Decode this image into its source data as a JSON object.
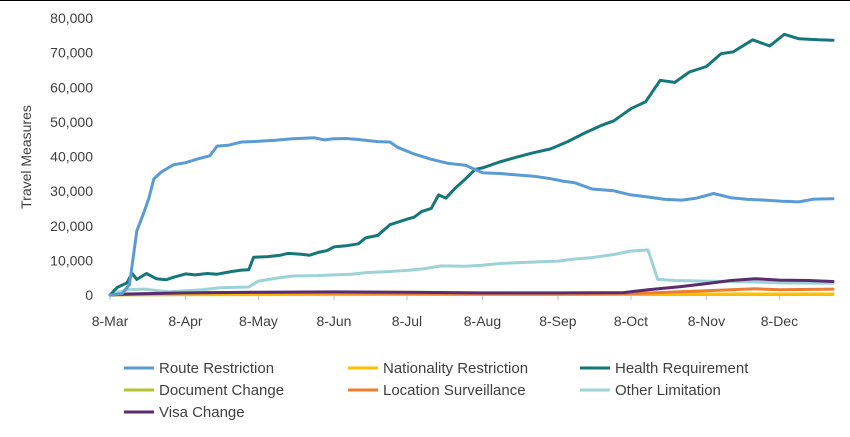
{
  "chart_data": {
    "type": "line",
    "title": "",
    "xlabel": "",
    "ylabel": "Travel Measures",
    "ylim": [
      0,
      80000
    ],
    "yticks": [
      0,
      10000,
      20000,
      30000,
      40000,
      50000,
      60000,
      70000,
      80000
    ],
    "ytick_labels": [
      "0",
      "10,000",
      "20,000",
      "30,000",
      "40,000",
      "50,000",
      "60,000",
      "70,000",
      "80,000"
    ],
    "xlim": [
      "2020-03-08",
      "2020-12-30"
    ],
    "xticks": [
      "2020-03-08",
      "2020-04-08",
      "2020-05-08",
      "2020-06-08",
      "2020-07-08",
      "2020-08-08",
      "2020-09-08",
      "2020-10-08",
      "2020-11-08",
      "2020-12-08"
    ],
    "xtick_labels": [
      "8-Mar",
      "8-Apr",
      "8-May",
      "8-Jun",
      "8-Jul",
      "8-Aug",
      "8-Sep",
      "8-Oct",
      "8-Nov",
      "8-Dec"
    ],
    "grid": false,
    "legend_position": "bottom",
    "series": [
      {
        "name": "Route Restriction",
        "color": "#5B9BD5",
        "points": [
          [
            "2020-03-08",
            0
          ],
          [
            "2020-03-13",
            400
          ],
          [
            "2020-03-16",
            3000
          ],
          [
            "2020-03-19",
            18500
          ],
          [
            "2020-03-22",
            24000
          ],
          [
            "2020-03-24",
            28000
          ],
          [
            "2020-03-26",
            33500
          ],
          [
            "2020-03-29",
            35500
          ],
          [
            "2020-04-03",
            37600
          ],
          [
            "2020-04-08",
            38200
          ],
          [
            "2020-04-13",
            39300
          ],
          [
            "2020-04-18",
            40200
          ],
          [
            "2020-04-21",
            43000
          ],
          [
            "2020-04-26",
            43300
          ],
          [
            "2020-05-01",
            44200
          ],
          [
            "2020-05-08",
            44400
          ],
          [
            "2020-05-15",
            44700
          ],
          [
            "2020-05-22",
            45100
          ],
          [
            "2020-05-31",
            45400
          ],
          [
            "2020-06-04",
            44800
          ],
          [
            "2020-06-08",
            45100
          ],
          [
            "2020-06-13",
            45200
          ],
          [
            "2020-06-18",
            44900
          ],
          [
            "2020-06-26",
            44300
          ],
          [
            "2020-07-01",
            44200
          ],
          [
            "2020-07-04",
            42700
          ],
          [
            "2020-07-11",
            40700
          ],
          [
            "2020-07-18",
            39200
          ],
          [
            "2020-07-25",
            38000
          ],
          [
            "2020-08-01",
            37500
          ],
          [
            "2020-08-08",
            35300
          ],
          [
            "2020-08-15",
            35100
          ],
          [
            "2020-08-22",
            34700
          ],
          [
            "2020-08-29",
            34300
          ],
          [
            "2020-09-05",
            33600
          ],
          [
            "2020-09-10",
            32900
          ],
          [
            "2020-09-15",
            32400
          ],
          [
            "2020-09-22",
            30600
          ],
          [
            "2020-10-01",
            30100
          ],
          [
            "2020-10-08",
            28900
          ],
          [
            "2020-10-15",
            28300
          ],
          [
            "2020-10-22",
            27600
          ],
          [
            "2020-10-29",
            27400
          ],
          [
            "2020-11-04",
            28000
          ],
          [
            "2020-11-11",
            29300
          ],
          [
            "2020-11-18",
            28100
          ],
          [
            "2020-11-25",
            27600
          ],
          [
            "2020-12-02",
            27400
          ],
          [
            "2020-12-09",
            27100
          ],
          [
            "2020-12-16",
            26900
          ],
          [
            "2020-12-22",
            27700
          ],
          [
            "2020-12-30",
            27800
          ]
        ]
      },
      {
        "name": "Nationality Restriction",
        "color": "#FFC000",
        "points": [
          [
            "2020-03-08",
            0
          ],
          [
            "2020-03-20",
            150
          ],
          [
            "2020-04-08",
            250
          ],
          [
            "2020-05-08",
            300
          ],
          [
            "2020-07-08",
            300
          ],
          [
            "2020-09-08",
            300
          ],
          [
            "2020-10-08",
            300
          ],
          [
            "2020-11-08",
            300
          ],
          [
            "2020-12-08",
            300
          ],
          [
            "2020-12-30",
            300
          ]
        ]
      },
      {
        "name": "Health Requirement",
        "color": "#16777A",
        "points": [
          [
            "2020-03-08",
            0
          ],
          [
            "2020-03-11",
            2200
          ],
          [
            "2020-03-15",
            3500
          ],
          [
            "2020-03-17",
            6300
          ],
          [
            "2020-03-19",
            4500
          ],
          [
            "2020-03-23",
            6200
          ],
          [
            "2020-03-27",
            4700
          ],
          [
            "2020-03-31",
            4400
          ],
          [
            "2020-04-03",
            5100
          ],
          [
            "2020-04-06",
            5700
          ],
          [
            "2020-04-08",
            6100
          ],
          [
            "2020-04-12",
            5800
          ],
          [
            "2020-04-17",
            6200
          ],
          [
            "2020-04-21",
            6000
          ],
          [
            "2020-04-27",
            6800
          ],
          [
            "2020-05-01",
            7200
          ],
          [
            "2020-05-04",
            7300
          ],
          [
            "2020-05-06",
            10900
          ],
          [
            "2020-05-12",
            11100
          ],
          [
            "2020-05-17",
            11500
          ],
          [
            "2020-05-20",
            12000
          ],
          [
            "2020-05-25",
            11800
          ],
          [
            "2020-05-29",
            11500
          ],
          [
            "2020-06-02",
            12400
          ],
          [
            "2020-06-05",
            12800
          ],
          [
            "2020-06-08",
            13900
          ],
          [
            "2020-06-13",
            14200
          ],
          [
            "2020-06-18",
            14800
          ],
          [
            "2020-06-21",
            16500
          ],
          [
            "2020-06-26",
            17200
          ],
          [
            "2020-07-01",
            20300
          ],
          [
            "2020-07-08",
            21900
          ],
          [
            "2020-07-11",
            22500
          ],
          [
            "2020-07-14",
            24100
          ],
          [
            "2020-07-18",
            25000
          ],
          [
            "2020-07-21",
            28900
          ],
          [
            "2020-07-24",
            28000
          ],
          [
            "2020-07-28",
            31000
          ],
          [
            "2020-08-01",
            33500
          ],
          [
            "2020-08-05",
            36300
          ],
          [
            "2020-08-08",
            36700
          ],
          [
            "2020-08-15",
            38400
          ],
          [
            "2020-08-22",
            39800
          ],
          [
            "2020-08-29",
            41100
          ],
          [
            "2020-09-05",
            42200
          ],
          [
            "2020-09-12",
            44300
          ],
          [
            "2020-09-19",
            46800
          ],
          [
            "2020-09-26",
            49000
          ],
          [
            "2020-10-01",
            50300
          ],
          [
            "2020-10-08",
            53800
          ],
          [
            "2020-10-14",
            55800
          ],
          [
            "2020-10-20",
            62000
          ],
          [
            "2020-10-26",
            61400
          ],
          [
            "2020-11-01",
            64400
          ],
          [
            "2020-11-08",
            66000
          ],
          [
            "2020-11-14",
            69700
          ],
          [
            "2020-11-19",
            70200
          ],
          [
            "2020-11-27",
            73700
          ],
          [
            "2020-12-04",
            71900
          ],
          [
            "2020-12-10",
            75300
          ],
          [
            "2020-12-16",
            74000
          ],
          [
            "2020-12-24",
            73700
          ],
          [
            "2020-12-30",
            73600
          ]
        ]
      },
      {
        "name": "Document Change",
        "color": "#B4C433",
        "points": [
          [
            "2020-03-08",
            0
          ],
          [
            "2020-04-08",
            100
          ],
          [
            "2020-07-08",
            150
          ],
          [
            "2020-10-08",
            200
          ],
          [
            "2020-12-30",
            200
          ]
        ]
      },
      {
        "name": "Location Surveillance",
        "color": "#ED7D31",
        "points": [
          [
            "2020-03-08",
            0
          ],
          [
            "2020-04-08",
            700
          ],
          [
            "2020-05-08",
            700
          ],
          [
            "2020-07-08",
            400
          ],
          [
            "2020-09-08",
            300
          ],
          [
            "2020-10-08",
            400
          ],
          [
            "2020-11-08",
            1200
          ],
          [
            "2020-11-28",
            1800
          ],
          [
            "2020-12-08",
            1500
          ],
          [
            "2020-12-30",
            1700
          ]
        ]
      },
      {
        "name": "Other Limitation",
        "color": "#9DD3D6",
        "points": [
          [
            "2020-03-08",
            0
          ],
          [
            "2020-03-15",
            1500
          ],
          [
            "2020-03-22",
            1700
          ],
          [
            "2020-04-01",
            900
          ],
          [
            "2020-04-08",
            1200
          ],
          [
            "2020-04-15",
            1500
          ],
          [
            "2020-04-22",
            2100
          ],
          [
            "2020-05-04",
            2300
          ],
          [
            "2020-05-08",
            4000
          ],
          [
            "2020-05-15",
            4800
          ],
          [
            "2020-05-22",
            5500
          ],
          [
            "2020-06-01",
            5600
          ],
          [
            "2020-06-08",
            5800
          ],
          [
            "2020-06-15",
            6000
          ],
          [
            "2020-06-22",
            6500
          ],
          [
            "2020-07-01",
            6800
          ],
          [
            "2020-07-08",
            7100
          ],
          [
            "2020-07-15",
            7600
          ],
          [
            "2020-07-22",
            8400
          ],
          [
            "2020-08-01",
            8300
          ],
          [
            "2020-08-08",
            8600
          ],
          [
            "2020-08-15",
            9100
          ],
          [
            "2020-08-22",
            9300
          ],
          [
            "2020-09-01",
            9600
          ],
          [
            "2020-09-08",
            9800
          ],
          [
            "2020-09-15",
            10400
          ],
          [
            "2020-09-22",
            10800
          ],
          [
            "2020-10-01",
            11700
          ],
          [
            "2020-10-08",
            12700
          ],
          [
            "2020-10-15",
            13000
          ],
          [
            "2020-10-19",
            4500
          ],
          [
            "2020-10-26",
            4200
          ],
          [
            "2020-11-08",
            4000
          ],
          [
            "2020-11-22",
            3900
          ],
          [
            "2020-12-08",
            3500
          ],
          [
            "2020-12-30",
            3400
          ]
        ]
      },
      {
        "name": "Visa Change",
        "color": "#5B2C6F",
        "points": [
          [
            "2020-03-08",
            0
          ],
          [
            "2020-03-15",
            300
          ],
          [
            "2020-04-08",
            600
          ],
          [
            "2020-05-08",
            800
          ],
          [
            "2020-06-08",
            900
          ],
          [
            "2020-07-08",
            800
          ],
          [
            "2020-08-08",
            600
          ],
          [
            "2020-09-08",
            600
          ],
          [
            "2020-10-05",
            700
          ],
          [
            "2020-10-15",
            1500
          ],
          [
            "2020-10-28",
            2400
          ],
          [
            "2020-11-08",
            3300
          ],
          [
            "2020-11-18",
            4200
          ],
          [
            "2020-11-28",
            4700
          ],
          [
            "2020-12-08",
            4300
          ],
          [
            "2020-12-20",
            4200
          ],
          [
            "2020-12-30",
            3900
          ]
        ]
      }
    ]
  }
}
